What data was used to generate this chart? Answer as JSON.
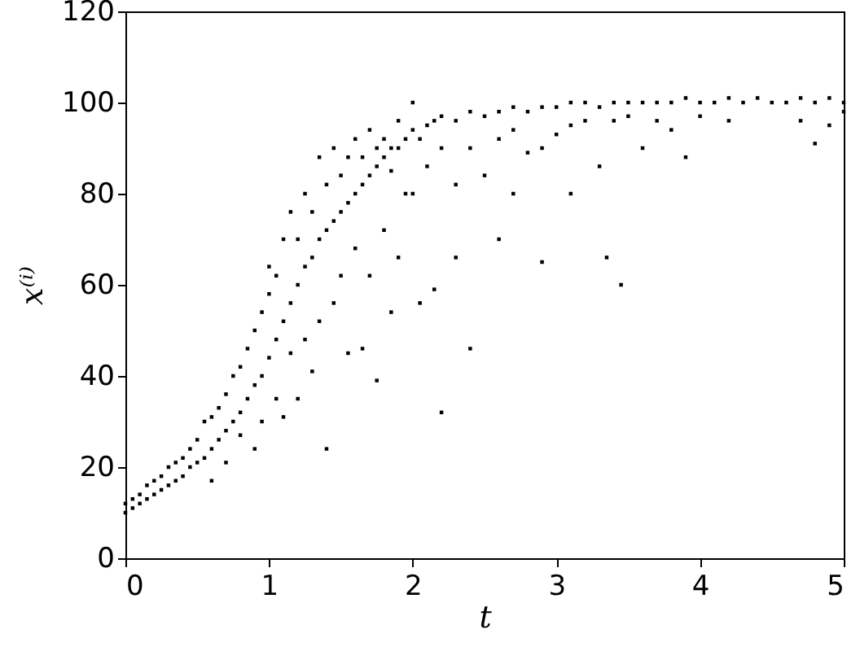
{
  "chart_data": {
    "type": "scatter",
    "xlabel": "t",
    "ylabel": "x⁽ⁱ⁾",
    "xlim": [
      0,
      5
    ],
    "ylim": [
      0,
      120
    ],
    "xticks": [
      0,
      1,
      2,
      3,
      4,
      5
    ],
    "yticks": [
      0,
      20,
      40,
      60,
      80,
      100,
      120
    ],
    "grid": false,
    "marker": "square",
    "series": [
      {
        "color": "#000000",
        "x": [
          0,
          0,
          0.05,
          0.05,
          0.1,
          0.1,
          0.15,
          0.15,
          0.2,
          0.2,
          0.25,
          0.25,
          0.3,
          0.3,
          0.35,
          0.35,
          0.4,
          0.4,
          0.45,
          0.45,
          0.5,
          0.5,
          0.55,
          0.55,
          0.6,
          0.6,
          0.6,
          0.65,
          0.65,
          0.7,
          0.7,
          0.7,
          0.75,
          0.75,
          0.8,
          0.8,
          0.8,
          0.85,
          0.85,
          0.9,
          0.9,
          0.9,
          0.95,
          0.95,
          0.95,
          1.0,
          1.0,
          1.0,
          1.05,
          1.05,
          1.05,
          1.1,
          1.1,
          1.1,
          1.15,
          1.15,
          1.15,
          1.2,
          1.2,
          1.2,
          1.25,
          1.25,
          1.25,
          1.3,
          1.3,
          1.3,
          1.35,
          1.35,
          1.35,
          1.4,
          1.4,
          1.4,
          1.45,
          1.45,
          1.45,
          1.5,
          1.5,
          1.5,
          1.55,
          1.55,
          1.55,
          1.6,
          1.6,
          1.6,
          1.65,
          1.65,
          1.65,
          1.7,
          1.7,
          1.7,
          1.75,
          1.75,
          1.75,
          1.8,
          1.8,
          1.8,
          1.85,
          1.85,
          1.85,
          1.9,
          1.9,
          1.9,
          1.95,
          1.95,
          2.0,
          2.0,
          2.0,
          2.05,
          2.05,
          2.1,
          2.1,
          2.15,
          2.15,
          2.2,
          2.2,
          2.2,
          2.3,
          2.3,
          2.3,
          2.4,
          2.4,
          2.4,
          2.5,
          2.5,
          2.6,
          2.6,
          2.6,
          2.7,
          2.7,
          2.7,
          2.8,
          2.8,
          2.9,
          2.9,
          2.9,
          3.0,
          3.0,
          3.1,
          3.1,
          3.1,
          3.2,
          3.2,
          3.3,
          3.3,
          3.4,
          3.4,
          3.35,
          3.5,
          3.5,
          3.45,
          3.6,
          3.6,
          3.7,
          3.7,
          3.8,
          3.8,
          3.9,
          3.9,
          4.0,
          4.0,
          4.1,
          4.2,
          4.2,
          4.3,
          4.4,
          4.5,
          4.6,
          4.7,
          4.7,
          4.8,
          4.8,
          4.9,
          4.9,
          5.0,
          5.0
        ],
        "values": [
          10,
          12,
          11,
          13,
          12,
          14,
          13,
          16,
          14,
          17,
          15,
          18,
          16,
          20,
          17,
          21,
          18,
          22,
          20,
          24,
          21,
          26,
          22,
          30,
          24,
          31,
          17,
          26,
          33,
          28,
          36,
          21,
          30,
          40,
          32,
          42,
          27,
          35,
          46,
          38,
          50,
          24,
          40,
          54,
          30,
          44,
          58,
          64,
          48,
          62,
          35,
          52,
          70,
          31,
          56,
          76,
          45,
          60,
          70,
          35,
          64,
          80,
          48,
          66,
          76,
          41,
          70,
          88,
          52,
          72,
          82,
          24,
          74,
          90,
          56,
          76,
          84,
          62,
          78,
          88,
          45,
          80,
          92,
          68,
          82,
          88,
          46,
          84,
          94,
          62,
          86,
          90,
          39,
          88,
          92,
          72,
          90,
          85,
          54,
          90,
          96,
          66,
          92,
          80,
          94,
          100,
          80,
          92,
          56,
          95,
          86,
          96,
          59,
          97,
          90,
          32,
          96,
          82,
          66,
          98,
          90,
          46,
          97,
          84,
          98,
          92,
          70,
          99,
          94,
          80,
          98,
          89,
          99,
          90,
          65,
          99,
          93,
          100,
          95,
          80,
          100,
          96,
          99,
          86,
          100,
          96,
          66,
          100,
          97,
          60,
          100,
          90,
          100,
          96,
          100,
          94,
          101,
          88,
          100,
          97,
          100,
          101,
          96,
          100,
          101,
          100,
          100,
          101,
          96,
          100,
          91,
          101,
          95,
          100,
          98
        ]
      }
    ]
  }
}
